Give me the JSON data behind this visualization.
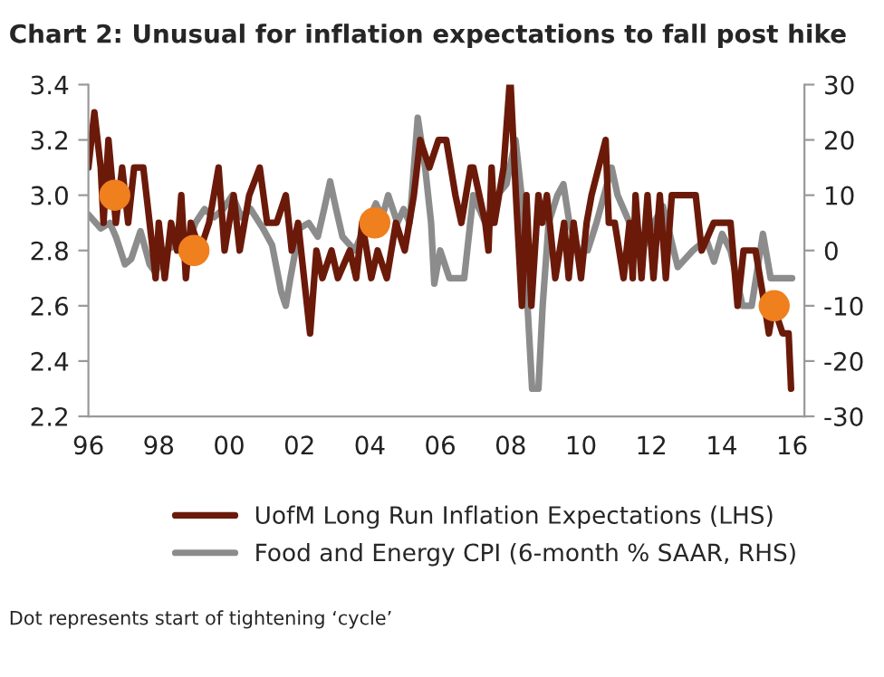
{
  "chart_data": {
    "type": "line",
    "title": "Chart 2: Unusual for inflation expectations to fall post hike",
    "annotations": [
      "Dot represents start of tightening ‘cycle’"
    ],
    "xlim": [
      1996,
      2016.35
    ],
    "xticks": [
      {
        "value": 1996,
        "label": "96"
      },
      {
        "value": 1998,
        "label": "98"
      },
      {
        "value": 2000,
        "label": "00"
      },
      {
        "value": 2002,
        "label": "02"
      },
      {
        "value": 2004,
        "label": "04"
      },
      {
        "value": 2006,
        "label": "06"
      },
      {
        "value": 2008,
        "label": "08"
      },
      {
        "value": 2010,
        "label": "10"
      },
      {
        "value": 2012,
        "label": "12"
      },
      {
        "value": 2014,
        "label": "14"
      },
      {
        "value": 2016,
        "label": "16"
      }
    ],
    "ylim": [
      2.2,
      3.4
    ],
    "yticks": [
      {
        "value": 2.2,
        "label": "2.2"
      },
      {
        "value": 2.4,
        "label": "2.4"
      },
      {
        "value": 2.6,
        "label": "2.6"
      },
      {
        "value": 2.8,
        "label": "2.8"
      },
      {
        "value": 3.0,
        "label": "3.0"
      },
      {
        "value": 3.2,
        "label": "3.2"
      },
      {
        "value": 3.4,
        "label": "3.4"
      }
    ],
    "y2lim": [
      -30,
      30
    ],
    "y2ticks": [
      -30,
      -20,
      -10,
      0,
      10,
      20,
      30
    ],
    "grid": false,
    "legend": "bottom",
    "series": [
      {
        "name": "UofM Long Run Inflation Expectations (LHS)",
        "axis": "y",
        "color": "#6b1a0a",
        "x": [
          1996.0,
          1996.17,
          1996.35,
          1996.43,
          1996.57,
          1996.78,
          1996.96,
          1997.13,
          1997.3,
          1997.56,
          1997.83,
          1997.91,
          1998.0,
          1998.17,
          1998.35,
          1998.52,
          1998.64,
          1998.77,
          1998.91,
          1999.17,
          1999.43,
          1999.7,
          1999.87,
          2000.13,
          2000.3,
          2000.57,
          2000.87,
          2001.08,
          2001.35,
          2001.61,
          2001.78,
          2001.96,
          2002.13,
          2002.3,
          2002.48,
          2002.65,
          2002.91,
          2003.09,
          2003.43,
          2003.61,
          2003.78,
          2004.04,
          2004.22,
          2004.48,
          2004.74,
          2004.99,
          2005.25,
          2005.43,
          2005.69,
          2005.95,
          2006.17,
          2006.43,
          2006.6,
          2006.86,
          2006.94,
          2007.28,
          2007.37,
          2007.46,
          2007.54,
          2007.8,
          2007.97,
          2008.0,
          2008.15,
          2008.32,
          2008.45,
          2008.59,
          2008.79,
          2008.9,
          2009.03,
          2009.27,
          2009.52,
          2009.65,
          2009.79,
          2010.0,
          2010.16,
          2010.3,
          2010.7,
          2010.79,
          2010.96,
          2011.21,
          2011.38,
          2011.47,
          2011.55,
          2011.72,
          2011.89,
          2012.06,
          2012.24,
          2012.41,
          2012.58,
          2013.26,
          2013.43,
          2013.77,
          2014.25,
          2014.45,
          2014.62,
          2014.96,
          2015.22,
          2015.34,
          2015.47,
          2015.73,
          2015.9,
          2015.97
        ],
        "values": [
          3.1,
          3.3,
          3.1,
          2.9,
          3.2,
          2.9,
          3.1,
          2.9,
          3.1,
          3.1,
          2.8,
          2.7,
          2.9,
          2.7,
          2.9,
          2.8,
          3.0,
          2.7,
          2.9,
          2.8,
          2.9,
          3.1,
          2.8,
          3.0,
          2.8,
          3.0,
          3.1,
          2.9,
          2.9,
          3.0,
          2.8,
          2.9,
          2.7,
          2.5,
          2.8,
          2.7,
          2.8,
          2.7,
          2.8,
          2.7,
          2.9,
          2.7,
          2.8,
          2.7,
          2.9,
          2.8,
          3.0,
          3.2,
          3.1,
          3.2,
          3.2,
          3.0,
          2.9,
          3.1,
          3.1,
          2.9,
          2.8,
          3.1,
          2.9,
          3.1,
          3.4,
          3.4,
          3.0,
          2.6,
          3.0,
          2.6,
          3.0,
          2.9,
          3.0,
          2.7,
          2.9,
          2.7,
          2.9,
          2.7,
          2.9,
          3.0,
          3.2,
          2.9,
          2.9,
          2.7,
          2.9,
          2.7,
          3.0,
          2.7,
          3.0,
          2.7,
          3.0,
          2.7,
          3.0,
          3.0,
          2.8,
          2.9,
          2.9,
          2.6,
          2.8,
          2.8,
          2.6,
          2.5,
          2.6,
          2.5,
          2.5,
          2.3
        ]
      },
      {
        "name": "Food and Energy CPI (6-month % SAAR, RHS)",
        "axis": "y2",
        "color": "#8c8c8c",
        "x": [
          1996.0,
          1996.35,
          1996.61,
          1996.78,
          1997.04,
          1997.22,
          1997.48,
          1997.74,
          1997.91,
          1998.17,
          1998.52,
          1998.7,
          1999.04,
          1999.3,
          1999.57,
          1999.83,
          2000.09,
          2000.35,
          2000.61,
          2000.96,
          2001.22,
          2001.48,
          2001.61,
          2001.74,
          2002.0,
          2002.26,
          2002.52,
          2002.7,
          2002.87,
          2003.04,
          2003.22,
          2003.57,
          2003.74,
          2004.0,
          2004.17,
          2004.35,
          2004.52,
          2004.78,
          2004.96,
          2005.13,
          2005.36,
          2005.57,
          2005.74,
          2005.83,
          2006.0,
          2006.26,
          2006.68,
          2006.94,
          2007.28,
          2007.62,
          2007.88,
          2008.14,
          2008.31,
          2008.48,
          2008.61,
          2008.79,
          2008.91,
          2009.08,
          2009.33,
          2009.5,
          2009.67,
          2009.93,
          2010.19,
          2010.44,
          2010.87,
          2011.04,
          2011.38,
          2011.73,
          2012.07,
          2012.33,
          2012.75,
          2013.18,
          2013.56,
          2013.78,
          2014.01,
          2014.25,
          2014.59,
          2014.85,
          2015.17,
          2015.39,
          2015.77,
          2016.0
        ],
        "values": [
          6.5,
          4,
          5,
          2.5,
          -2.5,
          -1.5,
          3.5,
          -2.5,
          -4,
          0,
          1,
          -1,
          5,
          7.5,
          6,
          7.5,
          10,
          6,
          7.5,
          4,
          1,
          -7.5,
          -10,
          -5,
          4,
          5,
          2.5,
          7.5,
          12.5,
          7.5,
          2.5,
          0,
          2.5,
          6,
          8.5,
          6,
          10,
          5,
          7.5,
          5,
          24,
          15,
          5,
          -6,
          0,
          -5,
          -5,
          10,
          5,
          10,
          12,
          20,
          10,
          -10,
          -25,
          -25,
          -10,
          5,
          10,
          12,
          5,
          0,
          0,
          5,
          15,
          10,
          5,
          0,
          5,
          8,
          -3,
          0,
          2,
          -2,
          3,
          0,
          -10,
          -10,
          3,
          -5,
          -5,
          -5
        ]
      },
      {
        "type": "scatter",
        "axis": "y",
        "color": "#f07f1e",
        "marker": "circle",
        "x": [
          1996.75,
          1999.0,
          2004.14,
          2015.49
        ],
        "values": [
          3.0,
          2.8,
          2.9,
          2.6
        ]
      }
    ]
  }
}
